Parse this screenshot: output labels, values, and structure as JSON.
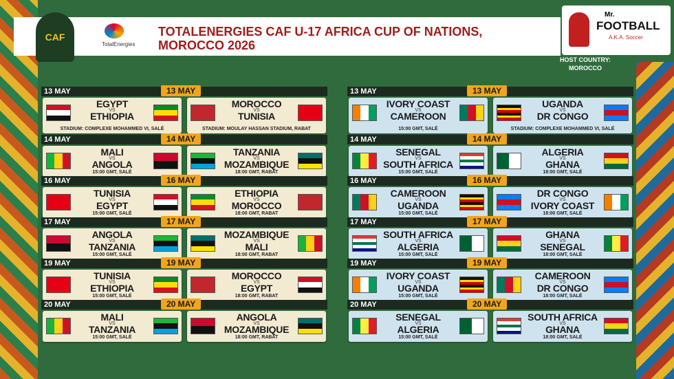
{
  "header": {
    "title_lines": [
      "TOTALENERGIES CAF U-17 AFRICA CUP OF NATIONS,",
      "MOROCCO 2026"
    ],
    "sponsor": "TotalEnergies",
    "caf_logo": "CAF",
    "brand_prefix": "Mr.",
    "brand": "FOOTBALL",
    "brand_tag": "A.K.A. Soccer",
    "host_label": "HOST COUNTRY:",
    "host": "MOROCCO"
  },
  "vs": "VS",
  "flags": {
    "EGYPT": {
      "dir": "h",
      "colors": [
        "#ce1126",
        "#ffffff",
        "#111111"
      ]
    },
    "ETHIOPIA": {
      "dir": "h",
      "colors": [
        "#078930",
        "#fcdd09",
        "#da121a"
      ]
    },
    "MOROCCO": {
      "dir": "h",
      "colors": [
        "#c1272d"
      ]
    },
    "TUNISIA": {
      "dir": "h",
      "colors": [
        "#e70013"
      ]
    },
    "MALI": {
      "dir": "v",
      "colors": [
        "#14b53a",
        "#fcd116",
        "#ce1126"
      ]
    },
    "ANGOLA": {
      "dir": "h",
      "colors": [
        "#cc092f",
        "#111111"
      ]
    },
    "TANZANIA": {
      "dir": "h",
      "colors": [
        "#1eb53a",
        "#111111",
        "#00a3dd"
      ]
    },
    "MOZAMBIQUE": {
      "dir": "h",
      "colors": [
        "#007168",
        "#111111",
        "#fce100"
      ]
    },
    "IVORY COAST": {
      "dir": "v",
      "colors": [
        "#f77f00",
        "#ffffff",
        "#009e60"
      ]
    },
    "CAMEROON": {
      "dir": "v",
      "colors": [
        "#007a5e",
        "#ce1126",
        "#fcd116"
      ]
    },
    "UGANDA": {
      "dir": "h",
      "colors": [
        "#111111",
        "#fcdc04",
        "#d90000",
        "#111111",
        "#fcdc04",
        "#d90000"
      ]
    },
    "DR CONGO": {
      "dir": "h",
      "colors": [
        "#007fff",
        "#ce1021",
        "#007fff"
      ]
    },
    "SENEGAL": {
      "dir": "v",
      "colors": [
        "#00853f",
        "#fdef42",
        "#e31b23"
      ]
    },
    "SOUTH AFRICA": {
      "dir": "h",
      "colors": [
        "#e03c31",
        "#ffffff",
        "#007749",
        "#ffffff",
        "#001489"
      ]
    },
    "ALGERIA": {
      "dir": "v",
      "colors": [
        "#006233",
        "#ffffff"
      ]
    },
    "GHANA": {
      "dir": "h",
      "colors": [
        "#ce1126",
        "#fcd116",
        "#006b3f"
      ]
    }
  },
  "groups": [
    {
      "color": "#f3ead2",
      "days": [
        {
          "date": "13 MAY",
          "matches": [
            {
              "home": "EGYPT",
              "away": "ETHIOPIA",
              "info": "STADIUM: COMPLEXE MOHAMMED VI, SALÉ"
            },
            {
              "home": "MOROCCO",
              "away": "TUNISIA",
              "info": "STADIUM: MOULAY HASSAN STADIUM, RABAT"
            }
          ]
        },
        {
          "date": "14 MAY",
          "matches": [
            {
              "home": "MALI",
              "away": "ANGOLA",
              "info": "15:00 GMT, SALÉ"
            },
            {
              "home": "TANZANIA",
              "away": "MOZAMBIQUE",
              "info": "18:00 GMT, RABAT"
            }
          ]
        },
        {
          "date": "16 MAY",
          "matches": [
            {
              "home": "TUNISIA",
              "away": "EGYPT",
              "info": "15:00 GMT, SALÉ"
            },
            {
              "home": "ETHIOPIA",
              "away": "MOROCCO",
              "info": "18:00 GMT, RABAT"
            }
          ]
        },
        {
          "date": "17 MAY",
          "matches": [
            {
              "home": "ANGOLA",
              "away": "TANZANIA",
              "info": "15:00 GMT, SALÉ"
            },
            {
              "home": "MOZAMBIQUE",
              "away": "MALI",
              "info": "18:00 GMT, RABAT"
            }
          ]
        },
        {
          "date": "19 MAY",
          "matches": [
            {
              "home": "TUNISIA",
              "away": "ETHIOPIA",
              "info": "15:00 GMT, SALÉ"
            },
            {
              "home": "MOROCCO",
              "away": "EGYPT",
              "info": "18:00 GMT, RABAT"
            }
          ]
        },
        {
          "date": "20 MAY",
          "matches": [
            {
              "home": "MALI",
              "away": "TANZANIA",
              "info": "15:00 GMT, SALÉ"
            },
            {
              "home": "ANGOLA",
              "away": "MOZAMBIQUE",
              "info": "18:00 GMT, RABAT"
            }
          ]
        }
      ]
    },
    {
      "color": "#cfe3ef",
      "days": [
        {
          "date": "13 MAY",
          "matches": [
            {
              "home": "IVORY COAST",
              "away": "CAMEROON",
              "info": "15:00 GMT, SALÉ"
            },
            {
              "home": "UGANDA",
              "away": "DR CONGO",
              "info": "STADIUM: COMPLEXE MOHAMMED VI, SALÉ"
            }
          ]
        },
        {
          "date": "14 MAY",
          "matches": [
            {
              "home": "SENEGAL",
              "away": "SOUTH AFRICA",
              "info": "15:00 GMT, SALÉ"
            },
            {
              "home": "ALGERIA",
              "away": "GHANA",
              "info": "18:00 GMT, SALÉ"
            }
          ]
        },
        {
          "date": "16 MAY",
          "matches": [
            {
              "home": "CAMEROON",
              "away": "UGANDA",
              "info": "15:00 GMT, SALÉ"
            },
            {
              "home": "DR CONGO",
              "away": "IVORY COAST",
              "info": "18:00 GMT, SALÉ"
            }
          ]
        },
        {
          "date": "17 MAY",
          "matches": [
            {
              "home": "SOUTH AFRICA",
              "away": "ALGERIA",
              "info": "15:00 GMT, SALÉ"
            },
            {
              "home": "GHANA",
              "away": "SENEGAL",
              "info": "18:00 GMT, SALÉ"
            }
          ]
        },
        {
          "date": "19 MAY",
          "matches": [
            {
              "home": "IVORY COAST",
              "away": "UGANDA",
              "info": "15:00 GMT, SALÉ"
            },
            {
              "home": "CAMEROON",
              "away": "DR CONGO",
              "info": "18:00 GMT, SALÉ"
            }
          ]
        },
        {
          "date": "20 MAY",
          "matches": [
            {
              "home": "SENEGAL",
              "away": "ALGERIA",
              "info": "15:00 GMT, SALÉ"
            },
            {
              "home": "SOUTH AFRICA",
              "away": "GHANA",
              "info": "18:00 GMT, SALÉ"
            }
          ]
        }
      ]
    }
  ]
}
